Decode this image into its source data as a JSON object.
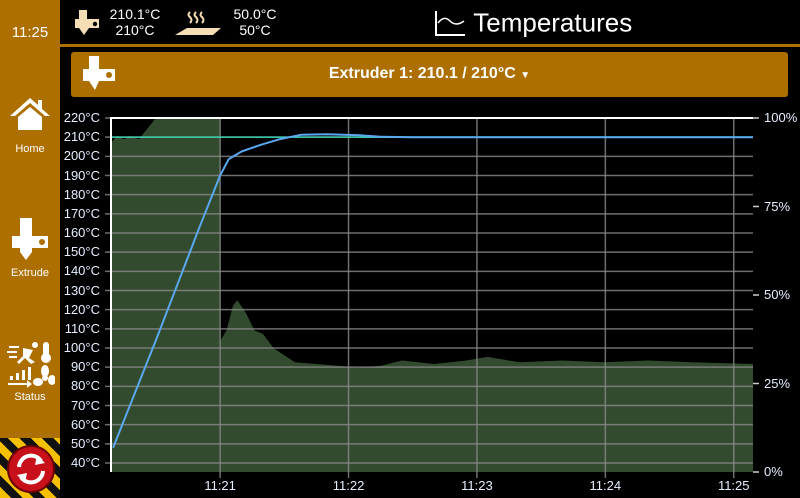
{
  "sidebar": {
    "time": "11:25",
    "items": [
      {
        "label": "Home",
        "icon": "home-icon"
      },
      {
        "label": "Extrude",
        "icon": "extruder-icon"
      },
      {
        "label": "Status",
        "icon": "status-icon"
      }
    ],
    "emergency_icon": "emergency-stop-icon"
  },
  "header": {
    "extruder": {
      "current": "210.1°C",
      "target": "210°C",
      "icon": "extruder-icon"
    },
    "bed": {
      "current": "50.0°C",
      "target": "50°C",
      "icon": "heated-bed-icon"
    },
    "title": "Temperatures",
    "title_icon": "chart-line-icon"
  },
  "selector": {
    "label": "Extruder 1: 210.1 / 210°C",
    "icon": "caret-down-icon"
  },
  "colors": {
    "accent": "#ad7000",
    "temperature": "#5aa8f0",
    "target": "#3ad0b0",
    "power": "#324b2e"
  },
  "chart_data": {
    "type": "line",
    "y_left": {
      "ticks": [
        "220°C",
        "210°C",
        "200°C",
        "190°C",
        "180°C",
        "170°C",
        "160°C",
        "150°C",
        "140°C",
        "130°C",
        "120°C",
        "110°C",
        "100°C",
        "90°C",
        "80°C",
        "70°C",
        "60°C",
        "50°C",
        "40°C"
      ],
      "range": [
        40,
        220
      ],
      "unit": "°C"
    },
    "y_right": {
      "ticks": [
        "100%",
        "75%",
        "50%",
        "25%",
        "0%"
      ],
      "range": [
        0,
        100
      ],
      "unit": "%"
    },
    "x": {
      "ticks": [
        "11:21",
        "11:22",
        "11:23",
        "11:24",
        "11:25"
      ],
      "range": [
        "11:20:09",
        "11:25:09"
      ]
    },
    "grid": true,
    "target": 210,
    "series": [
      {
        "kind": "temperature",
        "axis": "left",
        "points": [
          [
            "11:20:10",
            48
          ],
          [
            "11:20:20",
            76
          ],
          [
            "11:20:30",
            104
          ],
          [
            "11:20:40",
            133
          ],
          [
            "11:20:50",
            162
          ],
          [
            "11:21:00",
            190
          ],
          [
            "11:21:04",
            198.5
          ],
          [
            "11:21:10",
            202.5
          ],
          [
            "11:21:19",
            206
          ],
          [
            "11:21:28",
            209
          ],
          [
            "11:21:38",
            211.3
          ],
          [
            "11:21:50",
            211.5
          ],
          [
            "11:22:05",
            211
          ],
          [
            "11:22:15",
            210.2
          ],
          [
            "11:22:30",
            210
          ],
          [
            "11:23:30",
            210
          ],
          [
            "11:24:30",
            210
          ],
          [
            "11:25:09",
            210
          ]
        ]
      },
      {
        "kind": "power",
        "axis": "right",
        "points": [
          [
            "11:20:09",
            93
          ],
          [
            "11:20:12",
            95
          ],
          [
            "11:20:15",
            94
          ],
          [
            "11:20:18",
            95
          ],
          [
            "11:20:22",
            94
          ],
          [
            "11:20:26",
            97
          ],
          [
            "11:20:30",
            100
          ],
          [
            "11:21:00",
            100
          ],
          [
            "11:21:00",
            37
          ],
          [
            "11:21:03",
            40
          ],
          [
            "11:21:06",
            47
          ],
          [
            "11:21:08",
            48.5
          ],
          [
            "11:21:12",
            45
          ],
          [
            "11:21:16",
            40
          ],
          [
            "11:21:20",
            39
          ],
          [
            "11:21:25",
            35
          ],
          [
            "11:21:30",
            33
          ],
          [
            "11:21:35",
            31
          ],
          [
            "11:21:45",
            30.5
          ],
          [
            "11:21:55",
            30
          ],
          [
            "11:22:05",
            29.5
          ],
          [
            "11:22:15",
            30
          ],
          [
            "11:22:25",
            31.5
          ],
          [
            "11:22:40",
            30.5
          ],
          [
            "11:22:55",
            31.5
          ],
          [
            "11:23:05",
            32.5
          ],
          [
            "11:23:20",
            31
          ],
          [
            "11:23:40",
            31.5
          ],
          [
            "11:24:00",
            31
          ],
          [
            "11:24:20",
            31.5
          ],
          [
            "11:24:40",
            31
          ],
          [
            "11:25:09",
            30.5
          ]
        ]
      }
    ]
  }
}
